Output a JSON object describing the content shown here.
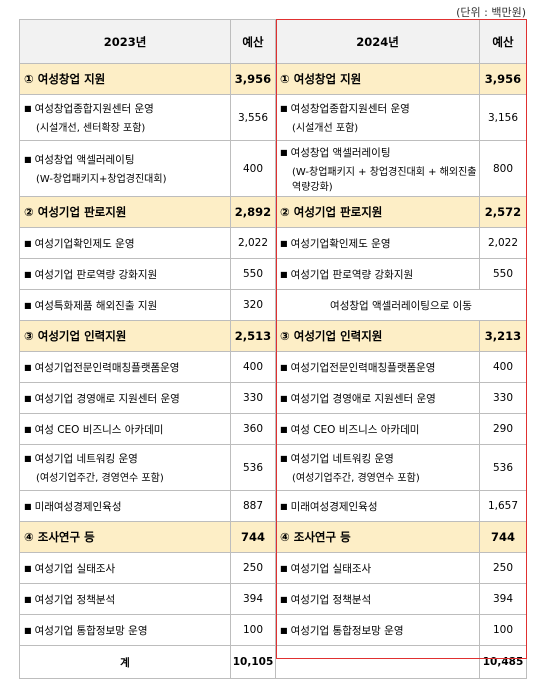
{
  "unit": "(단위 : 백만원)",
  "headers": {
    "y2023": "2023년",
    "budget": "예산",
    "y2024": "2024년"
  },
  "rows": [
    {
      "type": "cat",
      "left": "① 여성창업 지원",
      "lv": "3,956",
      "right": "① 여성창업 지원",
      "rv": "3,956"
    },
    {
      "type": "item",
      "left": "여성창업종합지원센터 운영",
      "lsub": "(시설개선, 센터확장 포함)",
      "lv": "3,556",
      "right": "여성창업종합지원센터 운영",
      "rsub": "(시설개선 포함)",
      "rv": "3,156"
    },
    {
      "type": "item3",
      "left": "여성창업 액셀러레이팅",
      "lsub": "(W-창업패키지+창업경진대회)",
      "lv": "400",
      "right": "여성창업 액셀러레이팅",
      "rsub": "(W-창업패키지 + 창업경진대회 + 해외진출 역량강화)",
      "rv": "800"
    },
    {
      "type": "cat",
      "left": "② 여성기업 판로지원",
      "lv": "2,892",
      "right": "② 여성기업 판로지원",
      "rv": "2,572"
    },
    {
      "type": "row",
      "left": "여성기업확인제도 운영",
      "lv": "2,022",
      "right": "여성기업확인제도 운영",
      "rv": "2,022"
    },
    {
      "type": "row",
      "left": "여성기업 판로역량 강화지원",
      "lv": "550",
      "right": "여성기업 판로역량 강화지원",
      "rv": "550"
    },
    {
      "type": "moved",
      "left": "여성특화제품 해외진출 지원",
      "lv": "320",
      "right": "여성창업 액셀러레이팅으로 이동"
    },
    {
      "type": "cat",
      "left": "③ 여성기업 인력지원",
      "lv": "2,513",
      "right": "③ 여성기업 인력지원",
      "rv": "3,213"
    },
    {
      "type": "row",
      "left": "여성기업전문인력매칭플랫폼운영",
      "lv": "400",
      "right": "여성기업전문인력매칭플랫폼운영",
      "rv": "400"
    },
    {
      "type": "row",
      "left": "여성기업 경영애로 지원센터 운영",
      "lv": "330",
      "right": "여성기업 경영애로 지원센터 운영",
      "rv": "330"
    },
    {
      "type": "row",
      "left": "여성 CEO 비즈니스 아카데미",
      "lv": "360",
      "right": "여성 CEO 비즈니스 아카데미",
      "rv": "290"
    },
    {
      "type": "item",
      "left": "여성기업 네트워킹 운영",
      "lsub": "(여성기업주간, 경영연수 포함)",
      "lv": "536",
      "right": "여성기업 네트워킹 운영",
      "rsub": "(여성기업주간, 경영연수 포함)",
      "rv": "536"
    },
    {
      "type": "row",
      "left": "미래여성경제인육성",
      "lv": "887",
      "right": "미래여성경제인육성",
      "rv": "1,657"
    },
    {
      "type": "cat",
      "left": "④ 조사연구 등",
      "lv": "744",
      "right": "④ 조사연구 등",
      "rv": "744"
    },
    {
      "type": "row",
      "left": "여성기업 실태조사",
      "lv": "250",
      "right": "여성기업 실태조사",
      "rv": "250"
    },
    {
      "type": "row",
      "left": "여성기업 정책분석",
      "lv": "394",
      "right": "여성기업 정책분석",
      "rv": "394"
    },
    {
      "type": "row",
      "left": "여성기업 통합정보망 운영",
      "lv": "100",
      "right": "여성기업 통합정보망 운영",
      "rv": "100"
    }
  ],
  "total": {
    "label": "계",
    "lv": "10,105",
    "rv": "10,485"
  }
}
